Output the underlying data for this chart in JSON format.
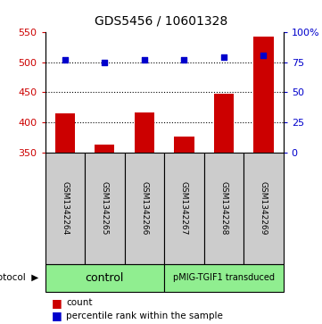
{
  "title": "GDS5456 / 10601328",
  "samples": [
    "GSM1342264",
    "GSM1342265",
    "GSM1342266",
    "GSM1342267",
    "GSM1342268",
    "GSM1342269"
  ],
  "counts": [
    415,
    363,
    416,
    376,
    447,
    543
  ],
  "percentiles": [
    505,
    500,
    505,
    505,
    509,
    512
  ],
  "ylim_left": [
    350,
    550
  ],
  "ylim_right": [
    0,
    100
  ],
  "yticks_left": [
    350,
    400,
    450,
    500,
    550
  ],
  "yticks_right": [
    0,
    25,
    50,
    75,
    100
  ],
  "yticklabels_right": [
    "0",
    "25",
    "50",
    "75",
    "100%"
  ],
  "bar_color": "#cc0000",
  "dot_color": "#0000cc",
  "bar_bottom": 350,
  "gridlines": [
    400,
    450,
    500
  ],
  "protocol_labels": [
    "control",
    "pMIG-TGIF1 transduced"
  ],
  "protocol_groups": [
    3,
    3
  ],
  "protocol_color": "#90ee90",
  "sample_box_color": "#cccccc",
  "fig_width": 3.61,
  "fig_height": 3.63,
  "dpi": 100
}
